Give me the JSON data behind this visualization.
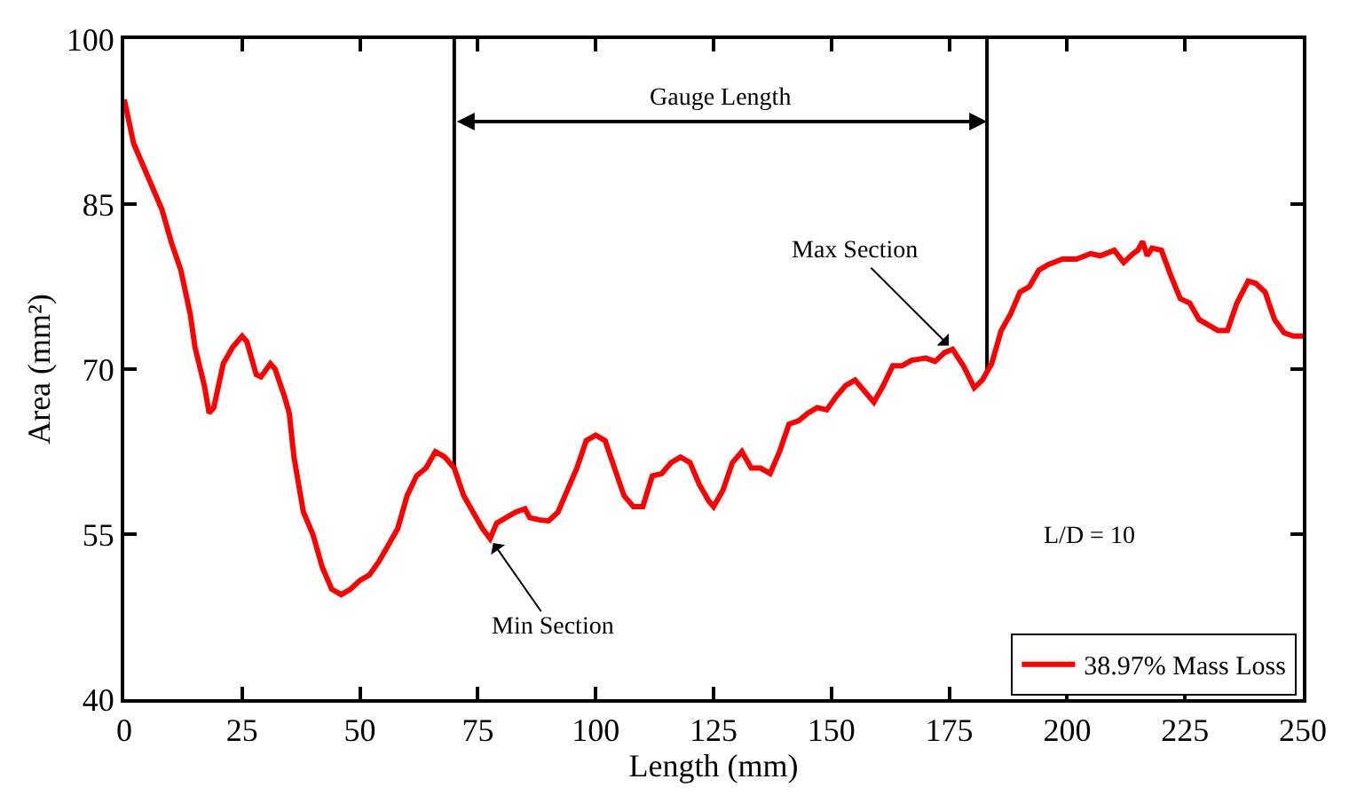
{
  "chart_data": {
    "type": "line",
    "xlabel": "Length (mm)",
    "ylabel": "Area (mm²)",
    "x": [
      0,
      2,
      5,
      8,
      10,
      12,
      14,
      15,
      17,
      18,
      19,
      21,
      23,
      25,
      26,
      28,
      29,
      31,
      32,
      34,
      35,
      36,
      38,
      40,
      42,
      44,
      46,
      48,
      50,
      52,
      54,
      56,
      58,
      60,
      62,
      64,
      66,
      68,
      70,
      72,
      74,
      76,
      77.6,
      79,
      81,
      83,
      85,
      86,
      88,
      90,
      92,
      94,
      96,
      98,
      100,
      102,
      104,
      106,
      108,
      110,
      112,
      114,
      116,
      118,
      120,
      122,
      124,
      125,
      127,
      129,
      131,
      133,
      135,
      137,
      139,
      141,
      143,
      145,
      147,
      149,
      151,
      153,
      155,
      157,
      159,
      161,
      163,
      165,
      167,
      170,
      172,
      174,
      175.7,
      178,
      180.3,
      182,
      184,
      186,
      188,
      190,
      192,
      194,
      196,
      199,
      202,
      205,
      207,
      210,
      212,
      214,
      215,
      216,
      217,
      218,
      220,
      222,
      224,
      226,
      228,
      230,
      232,
      234,
      236,
      238.4,
      240,
      242,
      244,
      246,
      248,
      250
    ],
    "series": [
      {
        "name": "38.97% Mass Loss",
        "color": "#ff0000",
        "values": [
          94.5,
          90.5,
          87.5,
          84.5,
          81.5,
          79,
          75,
          72,
          68.5,
          66,
          66.5,
          70.5,
          72,
          73,
          72.5,
          69.5,
          69.3,
          70.5,
          70,
          67.5,
          66,
          62,
          57,
          55,
          52,
          50,
          49.5,
          50,
          50.8,
          51.3,
          52.5,
          54,
          55.5,
          58.5,
          60.3,
          61,
          62.5,
          62,
          61,
          58.5,
          57,
          55.5,
          54.6,
          56,
          56.5,
          57,
          57.3,
          56.5,
          56.3,
          56.2,
          57,
          59,
          61,
          63.5,
          64,
          63.5,
          61,
          58.5,
          57.5,
          57.5,
          60.3,
          60.5,
          61.5,
          62,
          61.5,
          59.5,
          58,
          57.5,
          59,
          61.5,
          62.5,
          61,
          61,
          60.5,
          62.5,
          65,
          65.3,
          66,
          66.5,
          66.3,
          67.5,
          68.5,
          69,
          68,
          67,
          68.5,
          70.3,
          70.3,
          70.8,
          71,
          70.7,
          71.5,
          71.8,
          70.3,
          68.3,
          69,
          70.5,
          73.5,
          75,
          77,
          77.5,
          79,
          79.5,
          80,
          80,
          80.5,
          80.3,
          80.8,
          79.7,
          80.5,
          80.8,
          81.6,
          80.3,
          81,
          80.8,
          78.5,
          76.4,
          76,
          74.5,
          74,
          73.5,
          73.5,
          76,
          78,
          77.8,
          77,
          74.5,
          73.3,
          73,
          73
        ]
      }
    ],
    "xlim": [
      0,
      250
    ],
    "xticks": [
      0,
      25,
      50,
      75,
      100,
      125,
      150,
      175,
      200,
      225,
      250
    ],
    "ylim": [
      40,
      100
    ],
    "yticks": [
      40,
      55,
      70,
      85,
      100
    ],
    "grid": false,
    "legend": "bottom right",
    "marker": "none",
    "line_style": "solid",
    "ref_lines": [
      {
        "axis": "x",
        "value": 70,
        "color": "#000000"
      },
      {
        "axis": "x",
        "value": 183,
        "color": "#000000"
      }
    ],
    "annotations": [
      "Gauge Length",
      {
        "text": "Min Section",
        "x": 77.6,
        "y": 54.6
      },
      {
        "text": "Max Section",
        "x": 175.7,
        "y": 71.8
      },
      "L/D = 10"
    ]
  }
}
